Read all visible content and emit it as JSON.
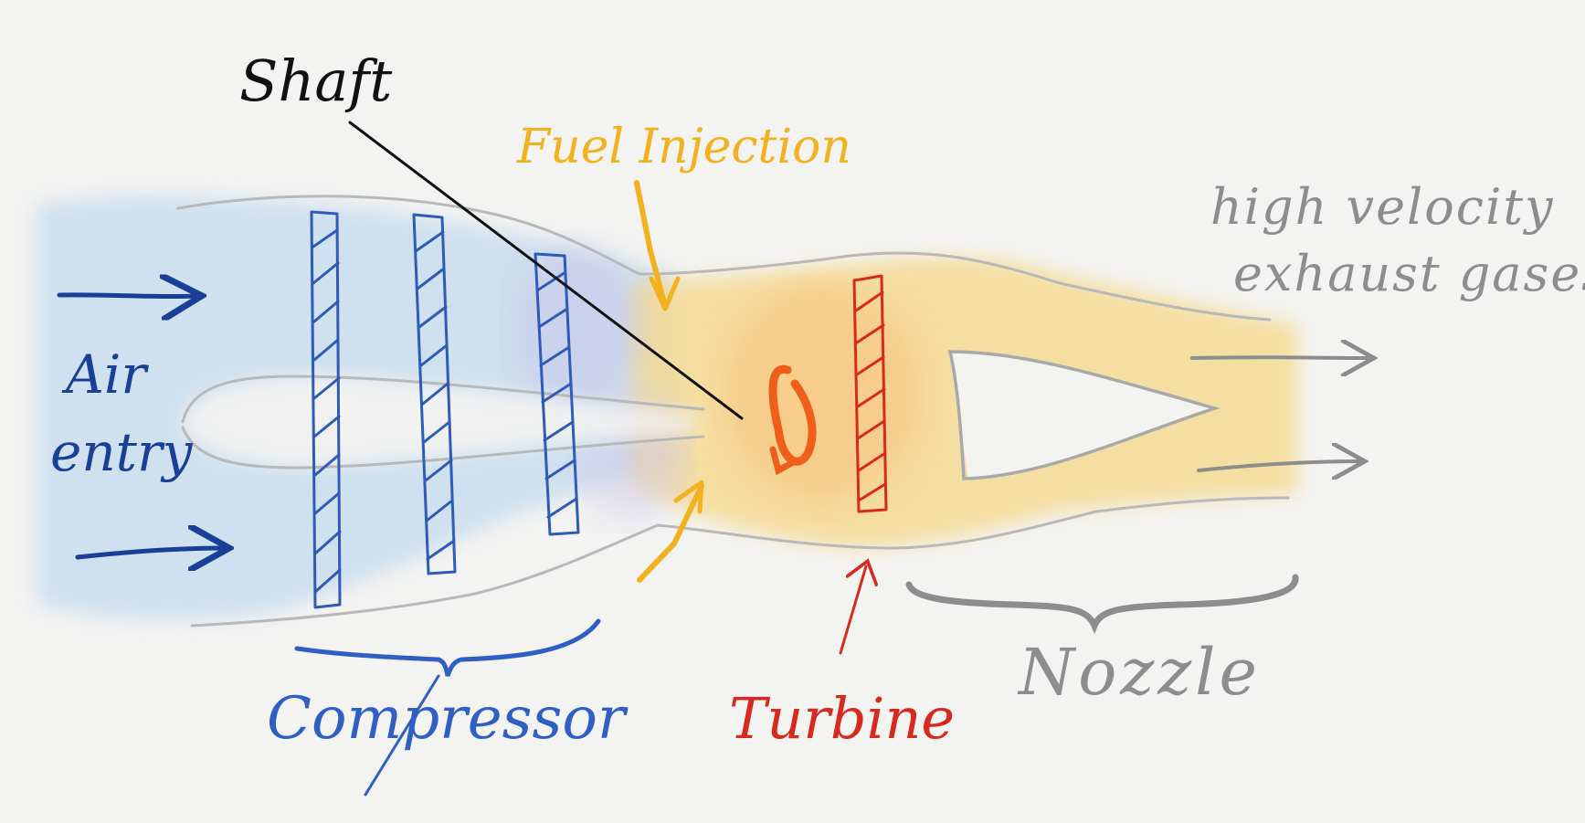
{
  "labels": {
    "shaft": "Shaft",
    "fuel_injection": "Fuel Injection",
    "exhaust_line1": "high velocity",
    "exhaust_line2": "exhaust gases",
    "air_line1": "Air",
    "air_line2": "entry",
    "compressor": "Compressor",
    "turbine": "Turbine",
    "nozzle": "Nozzle"
  },
  "colors": {
    "background": "#f3f3f1",
    "air_wash": "#cfe0ef",
    "air_blue": "#1a3f96",
    "compressor_blue": "#2f5fc4",
    "fuel_yellow": "#f2b21f",
    "combustion_wash": "#f6dc9c",
    "turbine_red": "#d8291f",
    "swirl_orange": "#ee5f1a",
    "exhaust_gray": "#8d8d8d",
    "outline_gray": "#b9b9b9",
    "shaft_black": "#111111"
  },
  "icons": {
    "air_arrows": "arrow-right-icon",
    "fuel_arrows": "arrow-diagonal-icon",
    "exhaust_arrows": "arrow-right-icon",
    "turbine_pointer": "arrow-up-icon",
    "rotation": "rotation-icon"
  }
}
